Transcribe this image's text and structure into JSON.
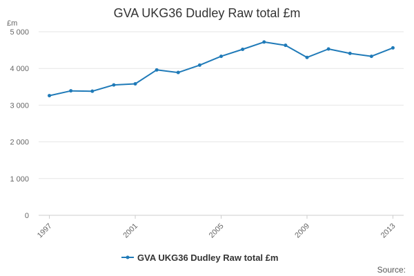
{
  "chart_data": {
    "type": "line",
    "title": "GVA UKG36 Dudley Raw total £m",
    "ylabel": "£m",
    "xlabel": "",
    "ylim": [
      0,
      5000
    ],
    "yticks": [
      0,
      1000,
      2000,
      3000,
      4000,
      5000
    ],
    "ytick_labels": [
      "0",
      "1 000",
      "2 000",
      "3 000",
      "4 000",
      "5 000"
    ],
    "xticks": [
      1997,
      2001,
      2005,
      2009,
      2013
    ],
    "grid": true,
    "legend_position": "bottom",
    "series": [
      {
        "name": "GVA UKG36 Dudley Raw total £m",
        "color": "#1f7ab8",
        "x": [
          1997,
          1998,
          1999,
          2000,
          2001,
          2002,
          2003,
          2004,
          2005,
          2006,
          2007,
          2008,
          2009,
          2010,
          2011,
          2012,
          2013
        ],
        "values": [
          3260,
          3390,
          3380,
          3550,
          3580,
          3960,
          3890,
          4090,
          4330,
          4520,
          4720,
          4630,
          4300,
          4530,
          4410,
          4330,
          4560
        ]
      }
    ]
  },
  "source_label": "Source:"
}
